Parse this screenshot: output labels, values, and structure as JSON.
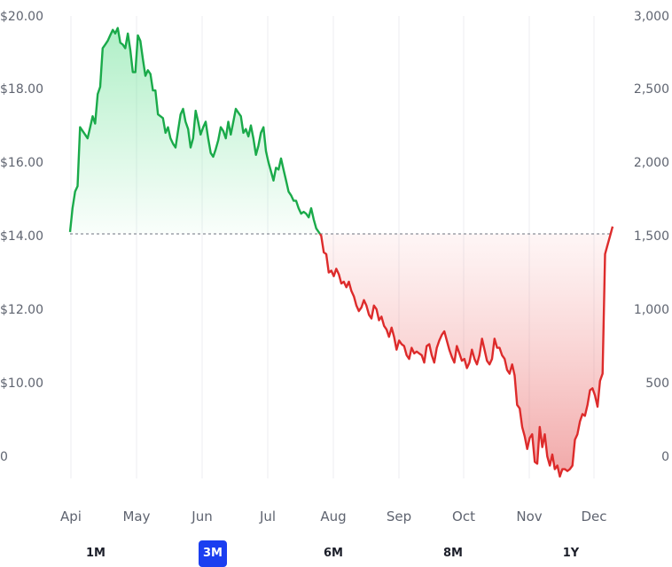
{
  "chart_data": {
    "type": "area",
    "baseline": 13.9,
    "x_labels": [
      "Api",
      "May",
      "Jun",
      "Jul",
      "Aug",
      "Sep",
      "Oct",
      "Nov",
      "Dec"
    ],
    "y_left_ticks": [
      "$20.00",
      "$18.00",
      "$16.00",
      "$14.00",
      "$12.00",
      "$10.00",
      "0"
    ],
    "y_right_ticks": [
      "3,000",
      "2,500",
      "2,000",
      "1,500",
      "1,000",
      "500",
      "0"
    ],
    "grid": "vertical",
    "colors": {
      "above": "#1aaa4a",
      "below": "#dd2b2b",
      "baseline": "#8a8f99"
    },
    "y": [
      13.95,
      14.6,
      15.05,
      15.2,
      16.8,
      16.7,
      16.6,
      16.5,
      16.8,
      17.1,
      16.9,
      17.7,
      17.9,
      18.95,
      19.05,
      19.15,
      19.3,
      19.45,
      19.35,
      19.5,
      19.1,
      19.05,
      18.95,
      19.35,
      18.9,
      18.3,
      18.3,
      19.3,
      19.15,
      18.65,
      18.2,
      18.35,
      18.25,
      17.8,
      17.8,
      17.15,
      17.1,
      17.05,
      16.65,
      16.8,
      16.5,
      16.35,
      16.25,
      16.7,
      17.15,
      17.3,
      16.95,
      16.75,
      16.25,
      16.5,
      17.25,
      16.95,
      16.6,
      16.8,
      16.95,
      16.5,
      16.1,
      16.0,
      16.2,
      16.45,
      16.8,
      16.7,
      16.5,
      16.95,
      16.6,
      16.95,
      17.3,
      17.2,
      17.1,
      16.65,
      16.75,
      16.55,
      16.85,
      16.5,
      16.05,
      16.3,
      16.65,
      16.8,
      16.15,
      15.85,
      15.6,
      15.35,
      15.7,
      15.65,
      15.95,
      15.65,
      15.35,
      15.05,
      14.95,
      14.8,
      14.8,
      14.6,
      14.45,
      14.5,
      14.45,
      14.35,
      14.6,
      14.3,
      14.05,
      13.95,
      13.85,
      13.4,
      13.35,
      12.85,
      12.9,
      12.75,
      12.95,
      12.8,
      12.55,
      12.6,
      12.45,
      12.6,
      12.35,
      12.2,
      11.95,
      11.8,
      11.9,
      12.1,
      11.95,
      11.7,
      11.6,
      11.95,
      11.85,
      11.55,
      11.65,
      11.4,
      11.3,
      11.1,
      11.35,
      11.1,
      10.75,
      11.0,
      10.9,
      10.85,
      10.6,
      10.5,
      10.8,
      10.65,
      10.7,
      10.65,
      10.6,
      10.4,
      10.85,
      10.9,
      10.6,
      10.4,
      10.8,
      11.0,
      11.15,
      11.25,
      11.0,
      10.75,
      10.55,
      10.4,
      10.85,
      10.65,
      10.45,
      10.5,
      10.25,
      10.4,
      10.75,
      10.5,
      10.35,
      10.6,
      11.05,
      10.75,
      10.45,
      10.35,
      10.5,
      11.05,
      10.8,
      10.8,
      10.6,
      10.5,
      10.2,
      10.1,
      10.35,
      10.05,
      9.25,
      9.15,
      8.65,
      8.4,
      8.05,
      8.35,
      8.45,
      7.7,
      7.65,
      8.65,
      8.1,
      8.45,
      7.85,
      7.6,
      7.9,
      7.5,
      7.6,
      7.3,
      7.5,
      7.5,
      7.45,
      7.5,
      7.6,
      8.3,
      8.45,
      8.8,
      9.0,
      8.95,
      9.25,
      9.65,
      9.7,
      9.5,
      9.2,
      9.9,
      10.1,
      13.35,
      13.6,
      13.85,
      14.1
    ]
  },
  "ranges": [
    {
      "label": "1M",
      "active": false
    },
    {
      "label": "3M",
      "active": true
    },
    {
      "label": "6M",
      "active": false
    },
    {
      "label": "8M",
      "active": false
    },
    {
      "label": "1Y",
      "active": false
    }
  ]
}
